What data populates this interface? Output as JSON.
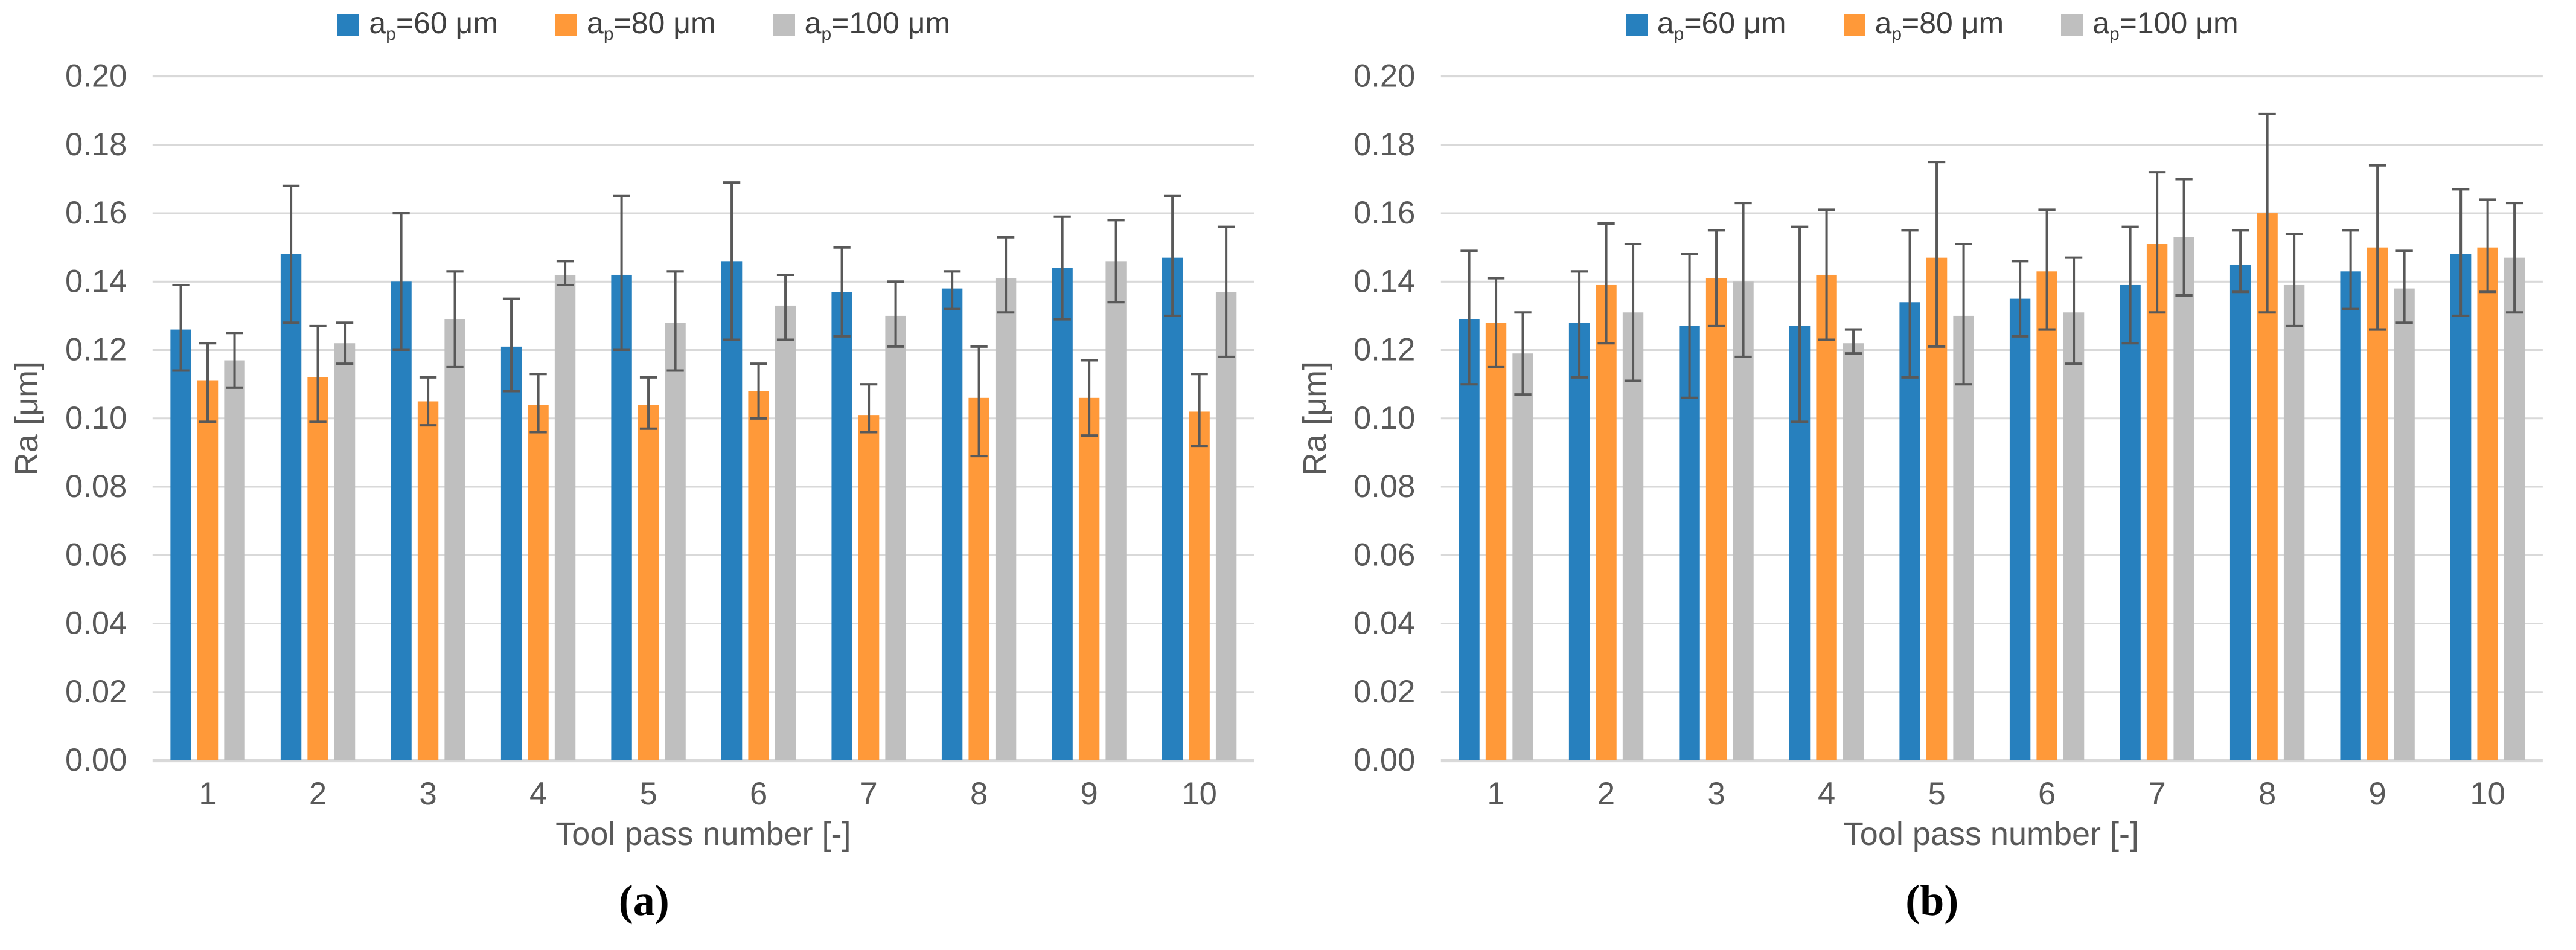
{
  "colors": {
    "background": "#ffffff",
    "grid": "#d9d9d9",
    "baseline": "#d9d9d9",
    "error_bar": "#595959",
    "tick_text": "#595959",
    "axis_title_text": "#595959",
    "legend_text": "#404040",
    "series_blue": "#2780be",
    "series_orange": "#ff9939",
    "series_gray": "#bfbfbf"
  },
  "chart_data": [
    {
      "type": "bar",
      "caption": "(a)",
      "xlabel": "Tool pass number [-]",
      "ylabel": "Ra [μm]",
      "ylim": [
        0,
        0.2
      ],
      "y_ticks": [
        0,
        0.02,
        0.04,
        0.06,
        0.08,
        0.1,
        0.12,
        0.14,
        0.16,
        0.18,
        0.2
      ],
      "grid": true,
      "legend_position": "top",
      "categories": [
        "1",
        "2",
        "3",
        "4",
        "5",
        "6",
        "7",
        "8",
        "9",
        "10"
      ],
      "series": [
        {
          "key": "ap60",
          "legend": {
            "base": "a",
            "sub": "p",
            "rest": "=60 μm"
          },
          "color": "#2780be",
          "values": [
            0.126,
            0.148,
            0.14,
            0.121,
            0.142,
            0.146,
            0.137,
            0.138,
            0.144,
            0.147
          ],
          "err_top": [
            0.139,
            0.168,
            0.16,
            0.135,
            0.165,
            0.169,
            0.15,
            0.143,
            0.159,
            0.165
          ],
          "err_bot": [
            0.114,
            0.128,
            0.12,
            0.108,
            0.12,
            0.123,
            0.124,
            0.132,
            0.129,
            0.13
          ]
        },
        {
          "key": "ap80",
          "legend": {
            "base": "a",
            "sub": "p",
            "rest": "=80 μm"
          },
          "color": "#ff9939",
          "values": [
            0.111,
            0.112,
            0.105,
            0.104,
            0.104,
            0.108,
            0.101,
            0.106,
            0.106,
            0.102
          ],
          "err_top": [
            0.122,
            0.127,
            0.112,
            0.113,
            0.112,
            0.116,
            0.11,
            0.121,
            0.117,
            0.113
          ],
          "err_bot": [
            0.099,
            0.099,
            0.098,
            0.096,
            0.097,
            0.1,
            0.096,
            0.089,
            0.095,
            0.092
          ]
        },
        {
          "key": "ap100",
          "legend": {
            "base": "a",
            "sub": "p",
            "rest": "=100 μm"
          },
          "color": "#bfbfbf",
          "values": [
            0.117,
            0.122,
            0.129,
            0.142,
            0.128,
            0.133,
            0.13,
            0.141,
            0.146,
            0.137
          ],
          "err_top": [
            0.125,
            0.128,
            0.143,
            0.146,
            0.143,
            0.142,
            0.14,
            0.153,
            0.158,
            0.156
          ],
          "err_bot": [
            0.109,
            0.116,
            0.115,
            0.139,
            0.114,
            0.123,
            0.121,
            0.131,
            0.134,
            0.118
          ]
        }
      ]
    },
    {
      "type": "bar",
      "caption": "(b)",
      "xlabel": "Tool pass number [-]",
      "ylabel": "Ra [μm]",
      "ylim": [
        0,
        0.2
      ],
      "y_ticks": [
        0,
        0.02,
        0.04,
        0.06,
        0.08,
        0.1,
        0.12,
        0.14,
        0.16,
        0.18,
        0.2
      ],
      "grid": true,
      "legend_position": "top",
      "categories": [
        "1",
        "2",
        "3",
        "4",
        "5",
        "6",
        "7",
        "8",
        "9",
        "10"
      ],
      "series": [
        {
          "key": "ap60",
          "legend": {
            "base": "a",
            "sub": "p",
            "rest": "=60 μm"
          },
          "color": "#2780be",
          "values": [
            0.129,
            0.128,
            0.127,
            0.127,
            0.134,
            0.135,
            0.139,
            0.145,
            0.143,
            0.148
          ],
          "err_top": [
            0.149,
            0.143,
            0.148,
            0.156,
            0.155,
            0.146,
            0.156,
            0.155,
            0.155,
            0.167
          ],
          "err_bot": [
            0.11,
            0.112,
            0.106,
            0.099,
            0.112,
            0.124,
            0.122,
            0.137,
            0.132,
            0.13
          ]
        },
        {
          "key": "ap80",
          "legend": {
            "base": "a",
            "sub": "p",
            "rest": "=80 μm"
          },
          "color": "#ff9939",
          "values": [
            0.128,
            0.139,
            0.141,
            0.142,
            0.147,
            0.143,
            0.151,
            0.16,
            0.15,
            0.15
          ],
          "err_top": [
            0.141,
            0.157,
            0.155,
            0.161,
            0.175,
            0.161,
            0.172,
            0.189,
            0.174,
            0.164
          ],
          "err_bot": [
            0.115,
            0.122,
            0.127,
            0.123,
            0.121,
            0.126,
            0.131,
            0.131,
            0.126,
            0.137
          ]
        },
        {
          "key": "ap100",
          "legend": {
            "base": "a",
            "sub": "p",
            "rest": "=100 μm"
          },
          "color": "#bfbfbf",
          "values": [
            0.119,
            0.131,
            0.14,
            0.122,
            0.13,
            0.131,
            0.153,
            0.139,
            0.138,
            0.147
          ],
          "err_top": [
            0.131,
            0.151,
            0.163,
            0.126,
            0.151,
            0.147,
            0.17,
            0.154,
            0.149,
            0.163
          ],
          "err_bot": [
            0.107,
            0.111,
            0.118,
            0.119,
            0.11,
            0.116,
            0.136,
            0.127,
            0.128,
            0.131
          ]
        }
      ]
    }
  ]
}
